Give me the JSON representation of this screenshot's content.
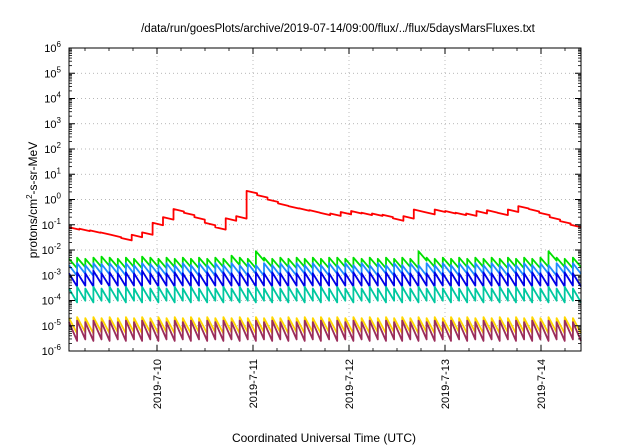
{
  "chart_data": {
    "type": "line",
    "title": "/data/run/goesPlots/archive/2019-07-14/09:00/flux/../flux/5daysMarsFluxes.txt",
    "xlabel": "Coordinated Universal Time (UTC)",
    "ylabel_parts": {
      "base": "protons/cm",
      "sup": "2",
      "rest": "-s-sr-MeV"
    },
    "y_scale": "log",
    "ylim": [
      1e-06,
      1000000.0
    ],
    "y_ticks": [
      {
        "base": "10",
        "exp": "-6",
        "value": 1e-06
      },
      {
        "base": "10",
        "exp": "-5",
        "value": 1e-05
      },
      {
        "base": "10",
        "exp": "-4",
        "value": 0.0001
      },
      {
        "base": "10",
        "exp": "-3",
        "value": 0.001
      },
      {
        "base": "10",
        "exp": "-2",
        "value": 0.01
      },
      {
        "base": "10",
        "exp": "-1",
        "value": 0.1
      },
      {
        "base": "10",
        "exp": "0",
        "value": 1
      },
      {
        "base": "10",
        "exp": "1",
        "value": 10
      },
      {
        "base": "10",
        "exp": "2",
        "value": 100
      },
      {
        "base": "10",
        "exp": "3",
        "value": 1000
      },
      {
        "base": "10",
        "exp": "4",
        "value": 10000
      },
      {
        "base": "10",
        "exp": "5",
        "value": 100000
      },
      {
        "base": "10",
        "exp": "6",
        "value": 1000000
      }
    ],
    "xlim": [
      "2019-07-09 02:00",
      "2019-07-14 10:00"
    ],
    "x_ticks": [
      {
        "label": "2019-7-10",
        "value": "2019-07-10 00:00"
      },
      {
        "label": "2019-7-11",
        "value": "2019-07-11 00:00"
      },
      {
        "label": "2019-7-12",
        "value": "2019-07-12 00:00"
      },
      {
        "label": "2019-7-13",
        "value": "2019-07-13 00:00"
      },
      {
        "label": "2019-7-14",
        "value": "2019-07-14 00:00"
      }
    ],
    "grid": true,
    "legend": false,
    "series": [
      {
        "color": "#ff0000",
        "peaks": [
          0.08,
          0.07,
          0.06,
          0.05,
          0.04,
          0.03,
          0.04,
          0.05,
          0.12,
          0.2,
          0.42,
          0.3,
          0.2,
          0.12,
          0.08,
          0.18,
          0.22,
          2.2,
          1.5,
          1.0,
          0.7,
          0.55,
          0.45,
          0.38,
          0.3,
          0.28,
          0.32,
          0.35,
          0.3,
          0.28,
          0.25,
          0.18,
          0.22,
          0.4,
          0.32,
          0.4,
          0.35,
          0.3,
          0.28,
          0.35,
          0.38,
          0.3,
          0.4,
          0.55,
          0.42,
          0.3,
          0.2,
          0.14,
          0.1
        ]
      },
      {
        "color": "#00e000",
        "peaks": [
          0.0045,
          0.005,
          0.0045,
          0.005,
          0.0055,
          0.005,
          0.0045,
          0.005,
          0.0045,
          0.0055,
          0.005,
          0.0045,
          0.005,
          0.0045,
          0.005,
          0.0045,
          0.005,
          0.0045,
          0.005,
          0.0045,
          0.006,
          0.005,
          0.0045,
          0.009,
          0.005,
          0.0045,
          0.005,
          0.0045,
          0.005,
          0.0045,
          0.005,
          0.0045,
          0.005,
          0.005,
          0.0045,
          0.005,
          0.0045,
          0.005,
          0.0045,
          0.005,
          0.0045,
          0.005,
          0.0045,
          0.009,
          0.005,
          0.0045,
          0.005,
          0.0045,
          0.005,
          0.0045,
          0.005,
          0.0045,
          0.005,
          0.0045,
          0.005,
          0.0045,
          0.005,
          0.0045,
          0.005,
          0.009,
          0.005,
          0.0045,
          0.005
        ]
      },
      {
        "color": "#1e8cff",
        "peaks": [
          0.0025,
          0.003,
          0.0025,
          0.003,
          0.0028,
          0.003,
          0.0025,
          0.003,
          0.0025,
          0.003,
          0.0028,
          0.0025,
          0.003,
          0.0025,
          0.003,
          0.0025,
          0.003,
          0.0025,
          0.003,
          0.0025,
          0.003,
          0.0025,
          0.003,
          0.0025,
          0.003,
          0.0025,
          0.003,
          0.0025,
          0.003,
          0.0025,
          0.003,
          0.0025,
          0.003,
          0.0025,
          0.003,
          0.0025,
          0.003,
          0.0025,
          0.003,
          0.0025,
          0.003,
          0.0025,
          0.003,
          0.0025,
          0.003,
          0.0025,
          0.003,
          0.0025,
          0.003,
          0.0025,
          0.003,
          0.0025,
          0.003,
          0.0025,
          0.003,
          0.0025,
          0.003,
          0.0025,
          0.003,
          0.0025,
          0.003,
          0.0025,
          0.003
        ]
      },
      {
        "color": "#0000e6",
        "peaks": [
          0.0012,
          0.0013,
          0.0012,
          0.0015,
          0.0012,
          0.0013,
          0.0012,
          0.0013,
          0.0012,
          0.0015,
          0.0012,
          0.0013,
          0.0012,
          0.0013,
          0.0012,
          0.0013,
          0.0012,
          0.0013,
          0.0012,
          0.0013,
          0.0012,
          0.0013,
          0.0012,
          0.0013,
          0.0012,
          0.0013,
          0.0012,
          0.0013,
          0.0012,
          0.0013,
          0.0012,
          0.0013,
          0.0012,
          0.0013,
          0.0012,
          0.0013,
          0.0012,
          0.0013,
          0.0012,
          0.0013,
          0.0012,
          0.0013,
          0.0012,
          0.0013,
          0.0012,
          0.0013,
          0.0012,
          0.0013,
          0.0012,
          0.0013,
          0.0012,
          0.0013,
          0.0012,
          0.0013,
          0.0012,
          0.0013,
          0.0012,
          0.0013,
          0.0012,
          0.0013,
          0.0012,
          0.0013,
          0.0012
        ]
      },
      {
        "color": "#00c8a0",
        "peaks": [
          0.0003,
          0.00035,
          0.0003,
          0.00035,
          0.0003,
          0.00035,
          0.0003,
          0.00035,
          0.0003,
          0.00035,
          0.0003,
          0.00035,
          0.0003,
          0.00035,
          0.0003,
          0.00035,
          0.0003,
          0.00035,
          0.0003,
          0.00035,
          0.0003,
          0.00035,
          0.0003,
          0.00035,
          0.0003,
          0.00035,
          0.0003,
          0.00035,
          0.0003,
          0.00035,
          0.0003,
          0.00035,
          0.0003,
          0.00035,
          0.0003,
          0.00035,
          0.0003,
          0.00035,
          0.0003,
          0.00035,
          0.0003,
          0.00035,
          0.0003,
          0.00035,
          0.0003,
          0.00035,
          0.0003,
          0.00035,
          0.0003,
          0.00035,
          0.0003,
          0.00035,
          0.0003,
          0.00035,
          0.0003,
          0.00035,
          0.0003,
          0.00035,
          0.0003,
          0.00035,
          0.0003,
          0.00035,
          0.0003
        ]
      },
      {
        "color": "#ffd700",
        "peaks": [
          2e-05,
          2.2e-05,
          2e-05,
          2.2e-05,
          2e-05,
          2.2e-05,
          2e-05,
          2.2e-05,
          2e-05,
          2.2e-05,
          2e-05,
          2.2e-05,
          2e-05,
          2.2e-05,
          2e-05,
          2.2e-05,
          2e-05,
          2.2e-05,
          2e-05,
          2.2e-05,
          2e-05,
          2.2e-05,
          2e-05,
          2.2e-05,
          2e-05,
          2.2e-05,
          2e-05,
          2.2e-05,
          2e-05,
          2.2e-05,
          2e-05,
          2.2e-05,
          2e-05,
          2.2e-05,
          2e-05,
          2.2e-05,
          2e-05,
          2.2e-05,
          2e-05,
          2.2e-05,
          2e-05,
          2.2e-05,
          2e-05,
          2.2e-05,
          2e-05,
          2.2e-05,
          2e-05,
          2.2e-05,
          2e-05,
          2.2e-05,
          2e-05,
          2.2e-05,
          2e-05,
          2.2e-05,
          2e-05,
          2.2e-05,
          2e-05,
          2.2e-05,
          2e-05,
          2.2e-05,
          2e-05,
          2.2e-05,
          2e-05
        ]
      },
      {
        "color": "#9b2d5c",
        "peaks": [
          1.4e-05,
          1.6e-05,
          1.4e-05,
          1.6e-05,
          1.4e-05,
          1.6e-05,
          1.4e-05,
          1.6e-05,
          1.4e-05,
          1.6e-05,
          1.4e-05,
          1.6e-05,
          1.4e-05,
          1.6e-05,
          1.4e-05,
          1.6e-05,
          1.4e-05,
          1.6e-05,
          1.4e-05,
          1.6e-05,
          1.4e-05,
          1.6e-05,
          1.4e-05,
          1.6e-05,
          1.4e-05,
          1.6e-05,
          1.4e-05,
          1.6e-05,
          1.4e-05,
          1.6e-05,
          1.4e-05,
          1.6e-05,
          1.4e-05,
          1.6e-05,
          1.4e-05,
          1.6e-05,
          1.4e-05,
          1.6e-05,
          1.4e-05,
          1.6e-05,
          1.4e-05,
          1.6e-05,
          1.4e-05,
          1.6e-05,
          1.4e-05,
          1.6e-05,
          1.4e-05,
          1.6e-05,
          1.4e-05,
          1.6e-05,
          1.4e-05,
          1.6e-05,
          1.4e-05,
          1.6e-05,
          1.4e-05,
          1.6e-05,
          1.4e-05,
          1.6e-05,
          1.4e-05,
          1.6e-05,
          1.4e-05,
          1.6e-05,
          1.4e-05
        ]
      }
    ],
    "decay_ratio": [
      0.55,
      0.42,
      0.38,
      0.3,
      0.28,
      0.25,
      0.18
    ]
  }
}
